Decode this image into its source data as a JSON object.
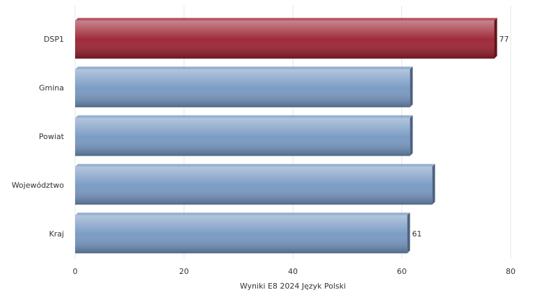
{
  "chart_data": {
    "type": "bar",
    "orientation": "horizontal",
    "x_label": "Wyniki E8 2024 Język Polski",
    "categories": [
      "DSP1",
      "Gmina",
      "Powiat",
      "Województwo",
      "Kraj"
    ],
    "values": [
      77,
      61.5,
      61.5,
      65.6,
      61
    ],
    "value_labels": [
      "77",
      null,
      null,
      null,
      "61"
    ],
    "colors": [
      "#9a2030",
      "#7597c2",
      "#7597c2",
      "#7597c2",
      "#7597c2"
    ],
    "xlim": [
      0,
      80
    ],
    "xticks": [
      0,
      20,
      40,
      60,
      80
    ],
    "grid": true
  }
}
